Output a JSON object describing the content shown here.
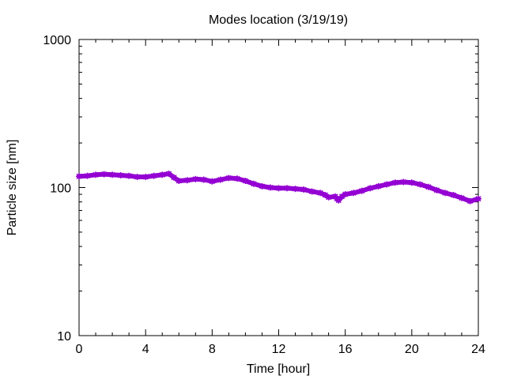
{
  "chart_data": {
    "type": "line",
    "title": "Modes location (3/19/19)",
    "xlabel": "Time [hour]",
    "ylabel": "Particle size [nm]",
    "xlim": [
      0,
      24
    ],
    "ylim": [
      10,
      1000
    ],
    "yscale": "log",
    "grid": false,
    "legend": "none",
    "x_ticks": [
      0,
      4,
      8,
      12,
      16,
      20,
      24
    ],
    "x_tick_labels": [
      "0",
      "4",
      "8",
      "12",
      "16",
      "20",
      "24"
    ],
    "y_ticks": [
      10,
      100,
      1000
    ],
    "y_tick_labels": [
      "10",
      "100",
      "1000"
    ],
    "series": [
      {
        "color": "#9400d3",
        "x": [
          0.0,
          0.5,
          1.0,
          1.5,
          2.0,
          2.5,
          3.0,
          3.5,
          4.0,
          4.5,
          5.0,
          5.4,
          5.7,
          6.0,
          6.5,
          7.0,
          7.5,
          8.0,
          8.5,
          9.0,
          9.5,
          10.0,
          10.5,
          11.0,
          11.5,
          12.0,
          12.5,
          13.0,
          13.5,
          14.0,
          14.5,
          14.8,
          15.0,
          15.4,
          15.5,
          15.6,
          15.8,
          16.0,
          16.5,
          17.0,
          17.5,
          18.0,
          18.5,
          19.0,
          19.5,
          20.0,
          20.5,
          21.0,
          21.5,
          22.0,
          22.5,
          23.0,
          23.5,
          24.0
        ],
        "y": [
          119,
          120,
          122,
          123,
          122,
          121,
          120,
          118,
          118,
          120,
          122,
          124,
          117,
          111,
          112,
          114,
          113,
          110,
          113,
          116,
          115,
          111,
          106,
          102,
          100,
          99,
          99,
          98,
          97,
          94,
          92,
          89,
          86,
          87,
          84,
          82,
          87,
          90,
          92,
          95,
          99,
          102,
          105,
          108,
          109,
          108,
          105,
          101,
          96,
          92,
          89,
          85,
          81,
          84
        ]
      }
    ]
  }
}
